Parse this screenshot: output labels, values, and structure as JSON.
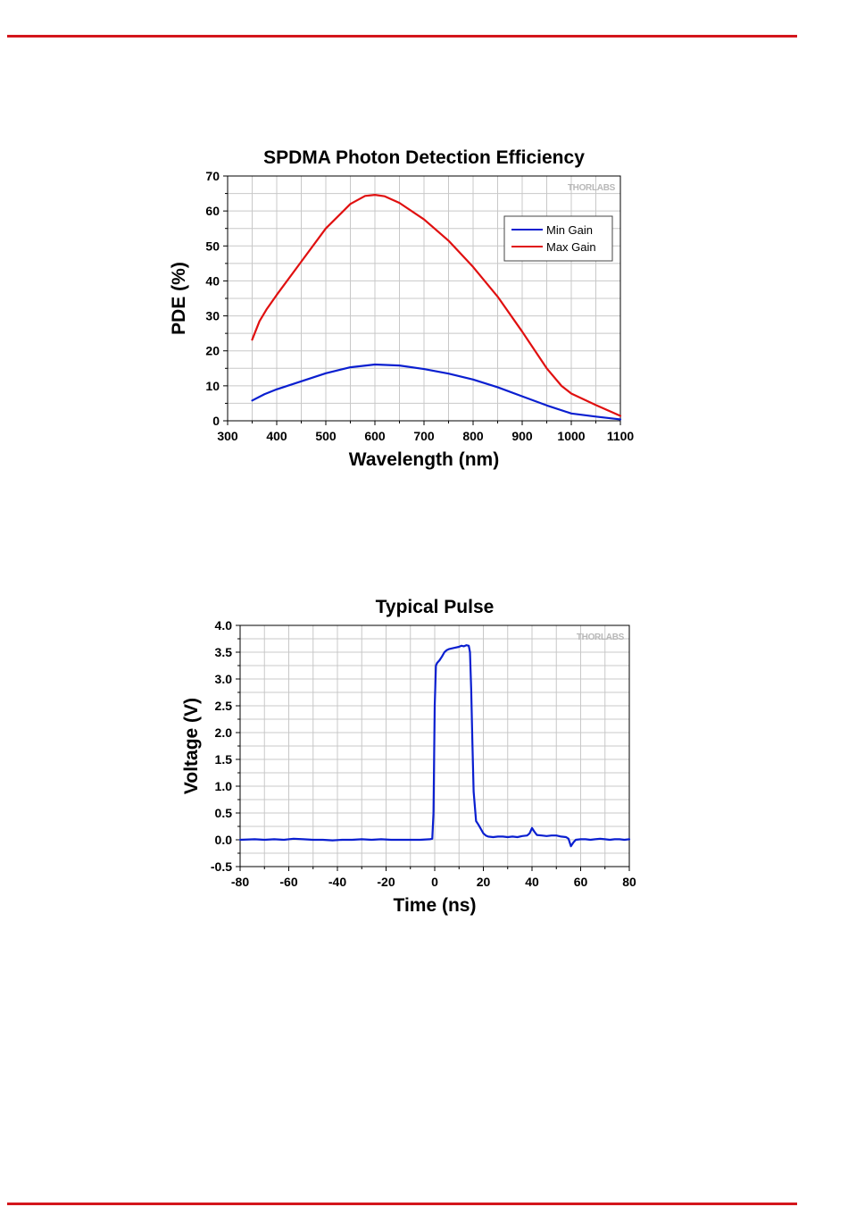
{
  "colors": {
    "rule": "#d4161c",
    "min_gain": "#0a1fd0",
    "max_gain": "#e01010",
    "pulse": "#0a1fd0",
    "grid": "#c8c8c8"
  },
  "chart_data": [
    {
      "type": "line",
      "title": "SPDMA Photon Detection Efficiency",
      "xlabel": "Wavelength (nm)",
      "ylabel": "PDE (%)",
      "xlim": [
        300,
        1100
      ],
      "ylim": [
        0,
        70
      ],
      "xticks": [
        "300",
        "400",
        "500",
        "600",
        "700",
        "800",
        "900",
        "1000",
        "1100"
      ],
      "yticks": [
        "0",
        "10",
        "20",
        "30",
        "40",
        "50",
        "60",
        "70"
      ],
      "grid": true,
      "legend_position": "top-right",
      "watermark": "THORLABS",
      "series": [
        {
          "name": "Min Gain",
          "color": "#0a1fd0",
          "x": [
            350,
            375,
            400,
            450,
            500,
            550,
            600,
            650,
            700,
            750,
            800,
            850,
            900,
            950,
            1000,
            1050,
            1100
          ],
          "y": [
            5.8,
            7.6,
            9.0,
            11.3,
            13.6,
            15.3,
            16.1,
            15.8,
            14.8,
            13.5,
            11.8,
            9.6,
            7.0,
            4.4,
            2.1,
            1.2,
            0.4
          ]
        },
        {
          "name": "Max Gain",
          "color": "#e01010",
          "x": [
            350,
            365,
            380,
            400,
            450,
            500,
            550,
            580,
            600,
            620,
            650,
            700,
            750,
            800,
            850,
            900,
            950,
            980,
            1000,
            1050,
            1100
          ],
          "y": [
            23.2,
            28.5,
            32.0,
            36.0,
            45.5,
            55.0,
            62.0,
            64.3,
            64.6,
            64.2,
            62.3,
            57.6,
            51.5,
            44.0,
            35.5,
            25.5,
            15.0,
            10.0,
            7.8,
            4.5,
            1.4
          ]
        }
      ]
    },
    {
      "type": "line",
      "title": "Typical Pulse",
      "xlabel": "Time (ns)",
      "ylabel": "Voltage (V)",
      "xlim": [
        -80,
        80
      ],
      "ylim": [
        -0.5,
        4.0
      ],
      "xticks": [
        "-80",
        "-60",
        "-40",
        "-20",
        "0",
        "20",
        "40",
        "60",
        "80"
      ],
      "yticks": [
        "-0.5",
        "0.0",
        "0.5",
        "1.0",
        "1.5",
        "2.0",
        "2.5",
        "3.0",
        "3.5",
        "4.0"
      ],
      "grid": true,
      "watermark": "THORLABS",
      "series": [
        {
          "color": "#0a1fd0",
          "x": [
            -80,
            -74,
            -70,
            -66,
            -62,
            -58,
            -54,
            -50,
            -46,
            -42,
            -38,
            -34,
            -30,
            -26,
            -22,
            -18,
            -14,
            -10,
            -6,
            -2,
            -1,
            -0.5,
            0,
            0.5,
            1,
            2,
            3,
            4,
            5,
            6,
            8,
            10,
            11,
            12,
            13,
            14,
            14.5,
            15,
            15.5,
            16,
            17,
            18,
            19,
            20,
            21,
            22,
            24,
            26,
            28,
            30,
            32,
            34,
            36,
            38,
            39,
            40,
            41,
            42,
            44,
            46,
            48,
            50,
            52,
            54,
            55,
            56,
            57,
            58,
            60,
            62,
            64,
            66,
            68,
            70,
            72,
            74,
            76,
            78,
            80
          ],
          "y": [
            0.0,
            0.01,
            0.0,
            0.01,
            0.0,
            0.02,
            0.01,
            0.0,
            0.0,
            -0.01,
            0.0,
            0.0,
            0.01,
            0.0,
            0.01,
            0.0,
            0.0,
            0.0,
            0.0,
            0.01,
            0.02,
            0.5,
            2.5,
            3.25,
            3.3,
            3.35,
            3.42,
            3.5,
            3.54,
            3.56,
            3.58,
            3.6,
            3.62,
            3.61,
            3.63,
            3.62,
            3.5,
            2.8,
            1.8,
            0.9,
            0.35,
            0.28,
            0.2,
            0.12,
            0.08,
            0.06,
            0.05,
            0.06,
            0.06,
            0.05,
            0.06,
            0.05,
            0.07,
            0.08,
            0.12,
            0.22,
            0.15,
            0.09,
            0.08,
            0.07,
            0.08,
            0.08,
            0.06,
            0.05,
            0.02,
            -0.12,
            -0.05,
            0.0,
            0.01,
            0.01,
            0.0,
            0.01,
            0.02,
            0.01,
            0.0,
            0.01,
            0.01,
            0.0,
            0.01
          ]
        }
      ]
    }
  ]
}
